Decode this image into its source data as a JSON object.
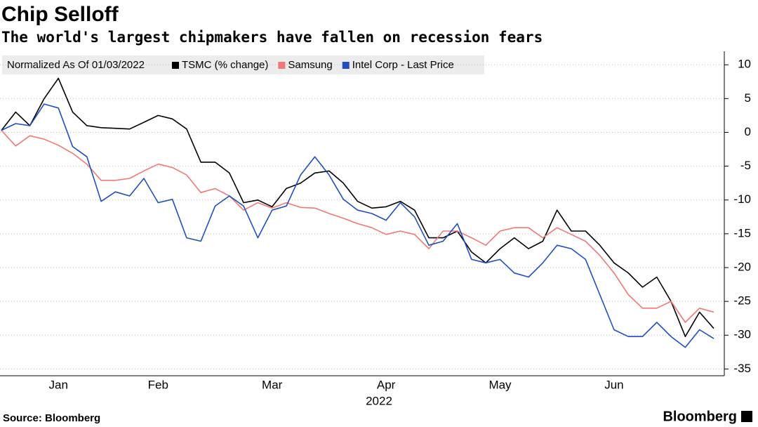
{
  "chart_data": {
    "type": "line",
    "title": "Chip Selloff",
    "subtitle": "The world's largest chipmakers have fallen on recession fears",
    "legend_title": "Normalized As Of 01/03/2022",
    "xlabel": "2022",
    "source": "Source: Bloomberg",
    "brand": "Bloomberg",
    "categories": [
      null,
      null,
      null,
      null,
      "Jan",
      null,
      null,
      null,
      null,
      null,
      null,
      "Feb",
      null,
      null,
      null,
      null,
      null,
      null,
      null,
      "Mar",
      null,
      null,
      null,
      null,
      null,
      null,
      null,
      "Apr",
      null,
      null,
      null,
      null,
      null,
      null,
      null,
      "May",
      null,
      null,
      null,
      null,
      null,
      null,
      null,
      "Jun",
      null,
      null,
      null,
      null,
      null,
      null,
      null
    ],
    "series": [
      {
        "name": "TSMC (% change)",
        "color": "#000000",
        "values": [
          0.3,
          3,
          1,
          5,
          8,
          3,
          1,
          0.7,
          0.6,
          0.5,
          1.5,
          2.5,
          2,
          0.5,
          -4.4,
          -4.4,
          -6,
          -10.4,
          -10,
          -11,
          -8.3,
          -7.5,
          -6,
          -5.7,
          -7.5,
          -10.2,
          -11.2,
          -11,
          -10.2,
          -11.5,
          -15.6,
          -15.6,
          -14.6,
          -17.7,
          -19.3,
          -17.2,
          -15.6,
          -17.2,
          -16.1,
          -11.5,
          -14.6,
          -14.6,
          -16.7,
          -19.3,
          -20.8,
          -22.9,
          -21.4,
          -25,
          -30.2,
          -26.6,
          -29
        ]
      },
      {
        "name": "Samsung",
        "color": "#f07878",
        "values": [
          0.3,
          -2,
          -0.5,
          -1,
          -1.9,
          -3.1,
          -4.7,
          -7.1,
          -7.1,
          -6.8,
          -5.7,
          -4.7,
          -5.2,
          -6.3,
          -8.9,
          -8.3,
          -9.4,
          -11.5,
          -10.4,
          -11.2,
          -10.4,
          -11.1,
          -11.2,
          -12,
          -12.7,
          -13.5,
          -14.1,
          -15.1,
          -14.6,
          -15.1,
          -17.2,
          -14.6,
          -14.6,
          -15.6,
          -16.7,
          -14.6,
          -14.1,
          -14.1,
          -15.6,
          -14.1,
          -15.1,
          -16.1,
          -18.2,
          -20.8,
          -24,
          -26,
          -26,
          -25,
          -28.1,
          -26,
          -26.6
        ]
      },
      {
        "name": "Intel Corp - Last Price",
        "color": "#1f4fbf",
        "values": [
          0.3,
          1.3,
          1,
          4.2,
          3.6,
          -2.1,
          -3.6,
          -10.2,
          -8.8,
          -9.4,
          -6.8,
          -10.4,
          -9.9,
          -15.6,
          -16.1,
          -10.9,
          -9.4,
          -10.9,
          -15.6,
          -11.5,
          -10.9,
          -6.3,
          -3.6,
          -6.3,
          -9.9,
          -11.5,
          -12,
          -13,
          -10.4,
          -12.5,
          -16.7,
          -16.1,
          -13.5,
          -18.8,
          -19.3,
          -18.8,
          -20.8,
          -21.4,
          -19.3,
          -16.7,
          -17.2,
          -18.8,
          -24,
          -29.2,
          -30.2,
          -30.2,
          -28.1,
          -30.2,
          -31.8,
          -29.2,
          -30.5
        ]
      }
    ],
    "ylim": [
      -36,
      12
    ],
    "yticks": [
      10,
      5,
      0,
      -5,
      -10,
      -15,
      -20,
      -25,
      -30,
      -35
    ],
    "grid": true
  }
}
